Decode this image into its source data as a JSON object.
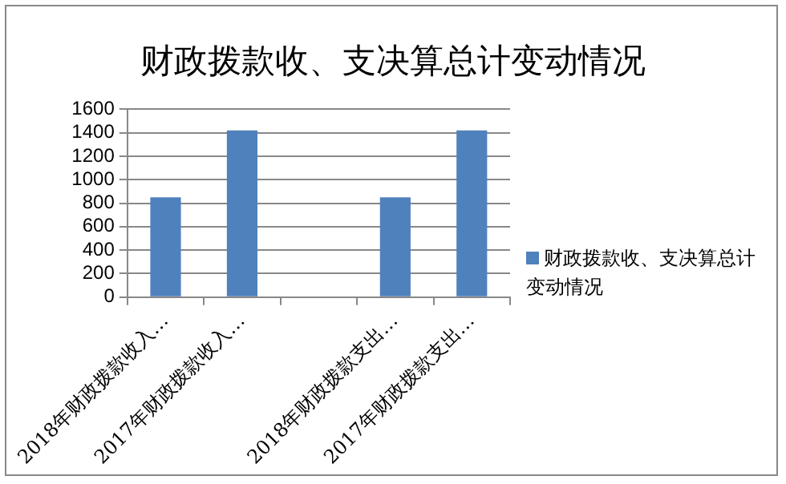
{
  "chart_data": {
    "type": "bar",
    "title": "财政拨款收、支决算总计变动情况",
    "categories": [
      "2018年财政拨款收入…",
      "2017年财政拨款收入…",
      null,
      "2018年财政拨款支出…",
      "2017年财政拨款支出…"
    ],
    "series": [
      {
        "name": "财政拨款收、支决算总计变动情况",
        "color": "#4f81bd",
        "values": [
          850,
          1420,
          null,
          850,
          1420
        ]
      }
    ],
    "ylim": [
      0,
      1600
    ],
    "yticks": [
      0,
      200,
      400,
      600,
      800,
      1000,
      1200,
      1400,
      1600
    ],
    "grid": "y",
    "legend": "right"
  }
}
